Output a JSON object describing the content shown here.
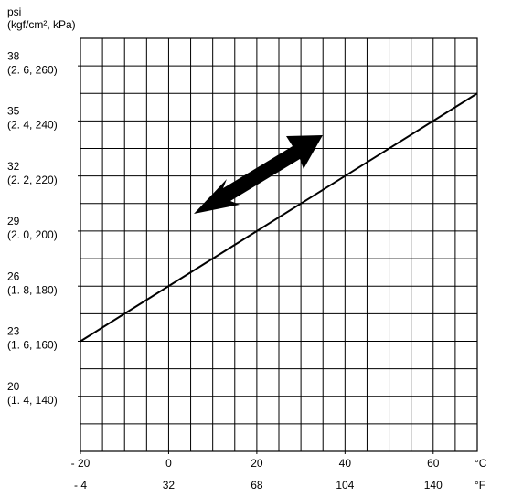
{
  "chart_data": {
    "type": "line",
    "y_label": "psi",
    "y_label_units": "(kgf/cm², kPa)",
    "x_unit": "°C",
    "x_secondary_unit": "°F",
    "x": [
      -20,
      70
    ],
    "series": [
      {
        "color": "#000000",
        "values": [
          23,
          36.5
        ]
      }
    ],
    "xlim": [
      -20,
      70
    ],
    "ylim": [
      17,
      39.5
    ],
    "xticks": [
      {
        "value": -20,
        "label": "- 20"
      },
      0,
      20,
      40,
      60
    ],
    "x_secondary_labels": [
      "- 4",
      "32",
      "68",
      "104",
      "140"
    ],
    "yticks": [
      38,
      35,
      32,
      29,
      26,
      23,
      20
    ],
    "y_secondary_labels": [
      "(2. 6, 260)",
      "(2. 4, 240)",
      "(2. 2, 220)",
      "(2. 0, 200)",
      "(1. 8, 180)",
      "(1. 6, 160)",
      "(1. 4, 140)"
    ],
    "xgrid": [
      -15,
      -10,
      -5,
      0,
      5,
      10,
      15,
      20,
      25,
      30,
      35,
      40,
      45,
      50,
      55,
      60,
      65
    ],
    "ygrid": [
      18.5,
      20,
      21.5,
      23,
      24.5,
      26,
      27.5,
      29,
      30.5,
      32,
      33.5,
      35,
      36.5,
      38
    ],
    "grid": true
  }
}
